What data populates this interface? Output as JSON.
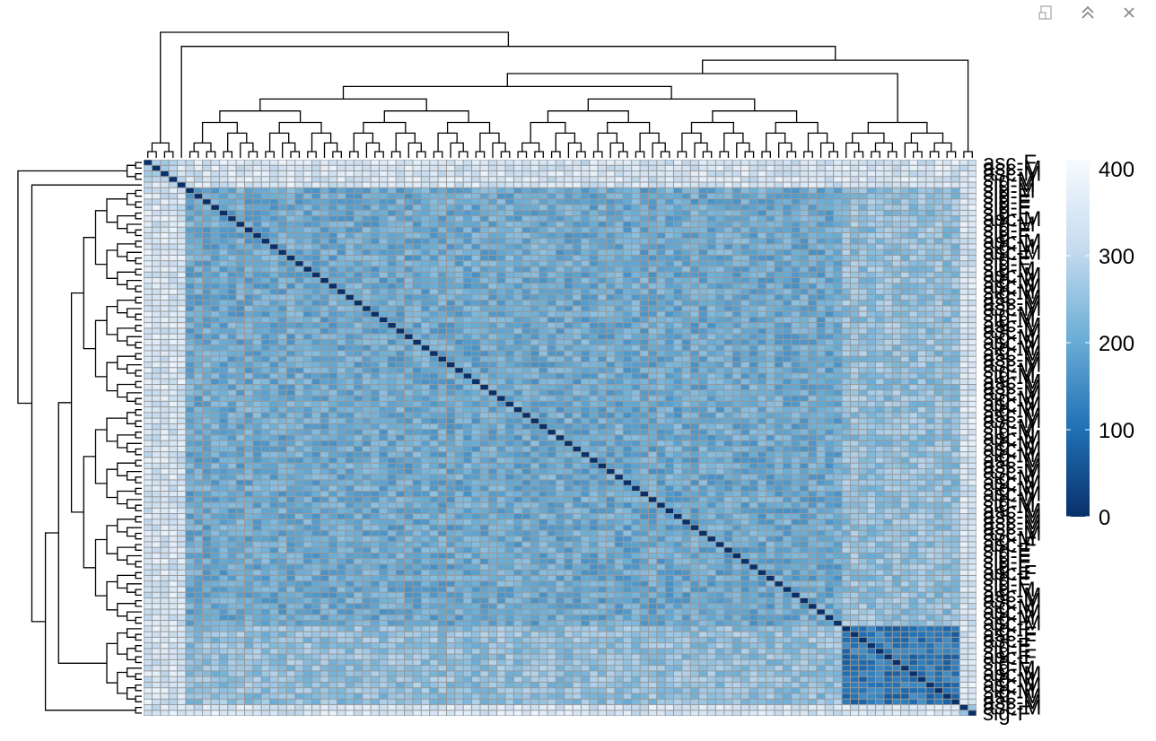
{
  "window": {
    "controls": [
      {
        "name": "popout-icon"
      },
      {
        "name": "collapse-icon"
      },
      {
        "name": "close-icon"
      }
    ]
  },
  "chart_data": {
    "type": "heatmap",
    "title": "",
    "n": 99,
    "color_scale": {
      "min": 0,
      "max": 400,
      "ticks": [
        "0",
        "100",
        "200",
        "300",
        "400"
      ],
      "colors": [
        "#08306b",
        "#2171b5",
        "#6baed6",
        "#c6dbef",
        "#f7fbff"
      ]
    },
    "row_labels": [
      "asc-F",
      "asc-M",
      "asc-M",
      "sig-M",
      "sig-M",
      "sig-M",
      "sig-F",
      "sig-F",
      "sig-F",
      "sig-F",
      "asc-M",
      "sig-M",
      "sig-F",
      "sig-F",
      "asc-M",
      "sig-M",
      "asc-M",
      "sig-F",
      "sig-F",
      "sig-M",
      "asc-M",
      "sig-M",
      "asc-M",
      "sig-M",
      "asc-M",
      "asc-M",
      "asc-M",
      "sig-M",
      "sig-M",
      "asc-M",
      "asc-M",
      "sig-M",
      "asc-M",
      "sig-M",
      "asc-M",
      "asc-M",
      "asc-M",
      "sig-M",
      "sig-M",
      "asc-M",
      "asc-M",
      "asc-M",
      "sig-M",
      "asc-M",
      "sig-M",
      "asc-M",
      "asc-M",
      "sig-M",
      "sig-M",
      "asc-M",
      "sig-M",
      "asc-M",
      "sig-M",
      "asc-M",
      "asc-M",
      "asc-M",
      "sig-M",
      "asc-M",
      "sig-M",
      "asc-M",
      "sig-M",
      "sig-M",
      "asc-M",
      "asc-M",
      "asc-M",
      "asc-M",
      "asc-M",
      "sig-M",
      "asc-F",
      "sig-F",
      "sig-F",
      "sig-F",
      "sig-F",
      "asc-F",
      "sig-F",
      "sig-F",
      "sig-M",
      "asc-M",
      "asc-M",
      "sig-M",
      "asc-M",
      "sig-M",
      "asc-M",
      "sig-F",
      "asc-F",
      "asc-F",
      "sig-F",
      "sig-F",
      "asc-F",
      "sig-F",
      "sig-M",
      "asc-M",
      "sig-M",
      "asc-M",
      "sig-M",
      "asc-M",
      "asc-M",
      "asc-M",
      "sig-F"
    ],
    "blocks": [
      {
        "start": 0,
        "end": 4,
        "level": 300
      },
      {
        "start": 4,
        "end": 5,
        "level": 290
      },
      {
        "start": 5,
        "end": 83,
        "level": 195
      },
      {
        "start": 83,
        "end": 97,
        "level": 110
      },
      {
        "start": 97,
        "end": 99,
        "level": 270
      }
    ]
  }
}
